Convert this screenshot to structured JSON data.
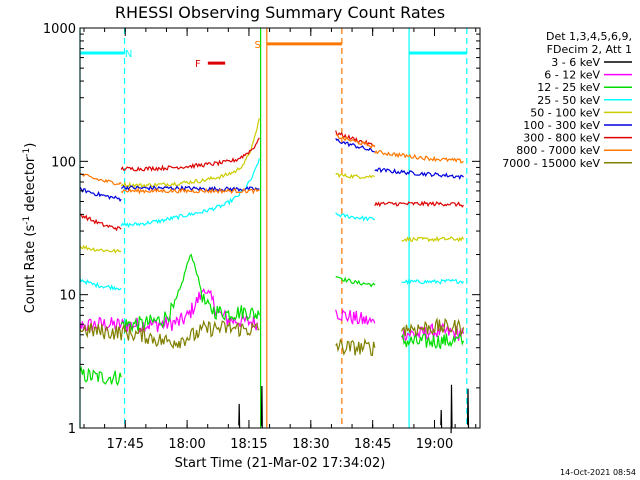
{
  "chart_data": {
    "type": "line",
    "title": "RHESSI Observing Summary Count Rates",
    "xlabel": "Start Time (21-Mar-02 17:34:02)",
    "ylabel_main": "Count Rate (s",
    "ylabel_sup1": "-1",
    "ylabel_mid": " detector",
    "ylabel_sup2": "-1",
    "ylabel_end": ")",
    "timestamp": "14-Oct-2021 08:54",
    "x_scale": "linear",
    "x_unit": "minutes since 17:34:02",
    "xlim": [
      0,
      97
    ],
    "y_scale": "log",
    "ylim": [
      1,
      1000
    ],
    "xticks": [
      {
        "value": 10.97,
        "label": "17:45"
      },
      {
        "value": 25.97,
        "label": "18:00"
      },
      {
        "value": 40.97,
        "label": "18:15"
      },
      {
        "value": 55.97,
        "label": "18:30"
      },
      {
        "value": 70.97,
        "label": "18:45"
      },
      {
        "value": 85.97,
        "label": "19:00"
      }
    ],
    "yticks": [
      {
        "value": 1,
        "label": "1"
      },
      {
        "value": 10,
        "label": "10"
      },
      {
        "value": 100,
        "label": "100"
      },
      {
        "value": 1000,
        "label": "1000"
      }
    ],
    "legend": {
      "placement": "right",
      "header1": "Det 1,3,4,5,6,9,",
      "header2": "FDecim 2, Att 1"
    },
    "series": [
      {
        "name": "3 - 6 keV",
        "color": "#000000",
        "segments": [
          [
            [
              38.5,
              1
            ],
            [
              38.6,
              1.6
            ],
            [
              38.7,
              1
            ]
          ],
          [
            [
              44,
              1
            ],
            [
              44.1,
              1.8
            ],
            [
              44.2,
              1
            ]
          ],
          [
            [
              87.5,
              1
            ],
            [
              87.6,
              1.3
            ],
            [
              87.7,
              1
            ]
          ],
          [
            [
              90,
              1
            ],
            [
              90.1,
              1.9
            ],
            [
              90.2,
              1
            ]
          ],
          [
            [
              94,
              1
            ],
            [
              94.1,
              1.8
            ],
            [
              94.2,
              1
            ]
          ]
        ]
      },
      {
        "name": "6 - 12 keV",
        "color": "#ff00ff",
        "segments": [
          [
            [
              0,
              5.8
            ],
            [
              5,
              6
            ],
            [
              10,
              5.9
            ],
            [
              20,
              6
            ],
            [
              24,
              6.2
            ],
            [
              26,
              6.8
            ],
            [
              28,
              8.5
            ],
            [
              30,
              11
            ],
            [
              32,
              9
            ],
            [
              34,
              7
            ],
            [
              36,
              6.5
            ],
            [
              40,
              6.3
            ],
            [
              43,
              6.2
            ]
          ],
          [
            [
              62,
              7.5
            ],
            [
              64,
              7
            ],
            [
              67,
              6.6
            ],
            [
              70,
              6.3
            ],
            [
              71.5,
              6.1
            ]
          ],
          [
            [
              78,
              5.2
            ],
            [
              82,
              5
            ],
            [
              86,
              5.3
            ],
            [
              90,
              5.2
            ],
            [
              93,
              5.1
            ]
          ]
        ]
      },
      {
        "name": "12 - 25 keV",
        "color": "#00dd00",
        "segments": [
          [
            [
              0,
              2.5
            ],
            [
              5,
              2.4
            ],
            [
              10,
              2.4
            ]
          ],
          [
            [
              10,
              6
            ],
            [
              15,
              6
            ],
            [
              20,
              6.5
            ],
            [
              23,
              8
            ],
            [
              25,
              13
            ],
            [
              26,
              17
            ],
            [
              27,
              20
            ],
            [
              28,
              16
            ],
            [
              29,
              12
            ],
            [
              30,
              9
            ],
            [
              31,
              8
            ],
            [
              33,
              7.5
            ],
            [
              36,
              7.2
            ],
            [
              40,
              7.5
            ],
            [
              42,
              7.2
            ],
            [
              43.5,
              7
            ]
          ],
          [
            [
              62,
              14
            ],
            [
              64,
              13
            ],
            [
              67,
              12.3
            ],
            [
              70,
              12
            ],
            [
              71.5,
              11.8
            ]
          ],
          [
            [
              78,
              4.5
            ],
            [
              82,
              4.4
            ],
            [
              86,
              4.5
            ],
            [
              90,
              4.5
            ],
            [
              93,
              4.5
            ]
          ]
        ]
      },
      {
        "name": "25 - 50 keV",
        "color": "#00ffff",
        "segments": [
          [
            [
              0,
              13
            ],
            [
              3,
              12
            ],
            [
              6,
              11.5
            ],
            [
              10,
              11.2
            ]
          ],
          [
            [
              10,
              33
            ],
            [
              15,
              34
            ],
            [
              20,
              36
            ],
            [
              25,
              39
            ],
            [
              30,
              42
            ],
            [
              35,
              47
            ],
            [
              38,
              54
            ],
            [
              40,
              62
            ],
            [
              42,
              78
            ],
            [
              43.5,
              105
            ]
          ],
          [
            [
              62,
              40
            ],
            [
              64,
              39
            ],
            [
              67,
              38
            ],
            [
              70,
              37
            ],
            [
              71.5,
              37
            ]
          ],
          [
            [
              78,
              12.5
            ],
            [
              82,
              12.5
            ],
            [
              86,
              12.5
            ],
            [
              90,
              12.6
            ],
            [
              93,
              12.6
            ]
          ]
        ]
      },
      {
        "name": "50 - 100 keV",
        "color": "#cccc00",
        "segments": [
          [
            [
              0,
              23
            ],
            [
              3,
              22
            ],
            [
              6,
              21.5
            ],
            [
              10,
              21
            ]
          ],
          [
            [
              10,
              67
            ],
            [
              15,
              66
            ],
            [
              20,
              67
            ],
            [
              25,
              69
            ],
            [
              30,
              72
            ],
            [
              35,
              78
            ],
            [
              38,
              85
            ],
            [
              40,
              98
            ],
            [
              42,
              135
            ],
            [
              43.5,
              210
            ]
          ],
          [
            [
              62,
              80
            ],
            [
              64,
              78
            ],
            [
              67,
              77
            ],
            [
              70,
              77
            ],
            [
              71.5,
              77
            ]
          ],
          [
            [
              78,
              26
            ],
            [
              82,
              26
            ],
            [
              86,
              26
            ],
            [
              90,
              26.2
            ],
            [
              93,
              26
            ]
          ]
        ]
      },
      {
        "name": "100 - 300 keV",
        "color": "#0000dd",
        "segments": [
          [
            [
              0,
              62
            ],
            [
              3,
              58
            ],
            [
              6,
              55
            ],
            [
              10,
              52
            ]
          ],
          [
            [
              10,
              64
            ],
            [
              15,
              63
            ],
            [
              20,
              63
            ],
            [
              25,
              63
            ],
            [
              30,
              62
            ],
            [
              35,
              62
            ],
            [
              40,
              62
            ],
            [
              43.5,
              62
            ]
          ],
          [
            [
              62,
              145
            ],
            [
              64,
              138
            ],
            [
              67,
              130
            ],
            [
              70,
              122
            ],
            [
              71.5,
              118
            ]
          ],
          [
            [
              71.5,
              87
            ],
            [
              76,
              84
            ],
            [
              80,
              82
            ],
            [
              85,
              80
            ],
            [
              90,
              78
            ],
            [
              93,
              76
            ]
          ]
        ]
      },
      {
        "name": "300 - 800 keV",
        "color": "#dd0000",
        "segments": [
          [
            [
              0,
              40
            ],
            [
              3,
              36
            ],
            [
              6,
              33
            ],
            [
              10,
              31
            ]
          ],
          [
            [
              10,
              88
            ],
            [
              15,
              88
            ],
            [
              20,
              89
            ],
            [
              25,
              91
            ],
            [
              30,
              94
            ],
            [
              35,
              98
            ],
            [
              38,
              103
            ],
            [
              40,
              112
            ],
            [
              42,
              125
            ],
            [
              43.5,
              150
            ]
          ],
          [
            [
              62,
              165
            ],
            [
              64,
              155
            ],
            [
              67,
              145
            ],
            [
              70,
              135
            ],
            [
              71.5,
              130
            ]
          ],
          [
            [
              71.5,
              48
            ],
            [
              76,
              48
            ],
            [
              80,
              48
            ],
            [
              85,
              48
            ],
            [
              90,
              48
            ],
            [
              93,
              47
            ]
          ]
        ]
      },
      {
        "name": "800 - 7000 keV",
        "color": "#ff7700",
        "segments": [
          [
            [
              0,
              80
            ],
            [
              3,
              75
            ],
            [
              6,
              71
            ],
            [
              10,
              68
            ]
          ],
          [
            [
              10,
              60
            ],
            [
              15,
              60
            ],
            [
              20,
              60
            ],
            [
              25,
              60
            ],
            [
              30,
              60
            ],
            [
              35,
              60
            ],
            [
              40,
              60
            ],
            [
              43.5,
              60
            ]
          ],
          [
            [
              62,
              155
            ],
            [
              64,
              148
            ],
            [
              67,
              140
            ],
            [
              70,
              132
            ],
            [
              71.5,
              128
            ]
          ],
          [
            [
              71.5,
              118
            ],
            [
              76,
              113
            ],
            [
              80,
              109
            ],
            [
              85,
              105
            ],
            [
              90,
              102
            ],
            [
              93,
              100
            ]
          ]
        ]
      },
      {
        "name": "7000 - 15000 keV",
        "color": "#808000",
        "segments": [
          [
            [
              0,
              5.5
            ],
            [
              5,
              5.3
            ],
            [
              10,
              5.2
            ],
            [
              15,
              5
            ],
            [
              20,
              4.5
            ],
            [
              24,
              4.5
            ],
            [
              26,
              4.8
            ],
            [
              28,
              5
            ],
            [
              30,
              5.5
            ],
            [
              33,
              5.6
            ],
            [
              36,
              5.6
            ],
            [
              40,
              5.5
            ],
            [
              43.5,
              5.5
            ]
          ],
          [
            [
              62,
              4.2
            ],
            [
              64,
              4
            ],
            [
              67,
              4
            ],
            [
              70,
              4
            ],
            [
              71.5,
              4
            ]
          ],
          [
            [
              78,
              5.6
            ],
            [
              82,
              5.6
            ],
            [
              86,
              5.7
            ],
            [
              90,
              5.7
            ],
            [
              93,
              5.7
            ]
          ]
        ]
      }
    ],
    "overlays": [
      {
        "kind": "vline",
        "x": 0,
        "color": "#00ffff",
        "style": "solid"
      },
      {
        "kind": "vline",
        "x": 10.8,
        "color": "#00ffff",
        "style": "dashed"
      },
      {
        "kind": "vline",
        "x": 43.8,
        "color": "#00dd00",
        "style": "solid"
      },
      {
        "kind": "vline",
        "x": 45.3,
        "color": "#ff7700",
        "style": "solid"
      },
      {
        "kind": "vline",
        "x": 63.5,
        "color": "#ff7700",
        "style": "dashed"
      },
      {
        "kind": "vline",
        "x": 79.8,
        "color": "#00ffff",
        "style": "solid"
      },
      {
        "kind": "vline",
        "x": 93.8,
        "color": "#00ffff",
        "style": "dashed"
      },
      {
        "kind": "hbar",
        "x0": 0,
        "x1": 10.8,
        "y": 650,
        "color": "#00ffff"
      },
      {
        "kind": "hbar",
        "x0": 79.8,
        "x1": 93.8,
        "y": 650,
        "color": "#00ffff"
      },
      {
        "kind": "hbar",
        "x0": 45.3,
        "x1": 63.5,
        "y": 760,
        "color": "#ff7700"
      },
      {
        "kind": "hbar",
        "x0": 31,
        "x1": 35.2,
        "y": 545,
        "color": "#dd0000"
      },
      {
        "kind": "label",
        "text": "N",
        "x": 11.8,
        "y": 650,
        "color": "#00ffff"
      },
      {
        "kind": "label",
        "text": "S",
        "x": 43.1,
        "y": 760,
        "color": "#ff7700"
      },
      {
        "kind": "label",
        "text": "F",
        "x": 28.6,
        "y": 545,
        "color": "#dd0000"
      }
    ]
  }
}
